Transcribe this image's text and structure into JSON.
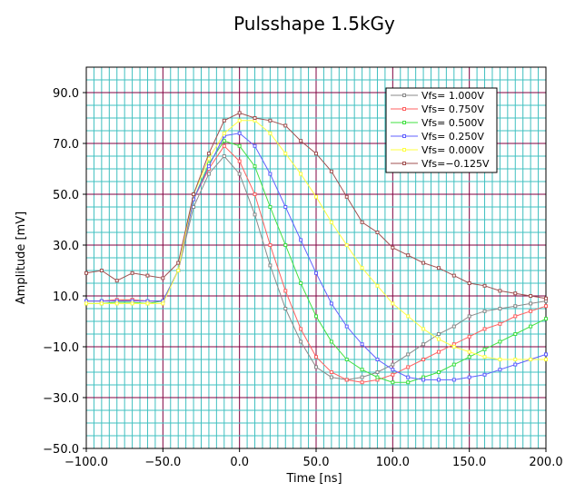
{
  "chart_data": {
    "type": "line",
    "title": "Pulsshape 1.5kGy",
    "xlabel": "Time [ns]",
    "ylabel": "Amplitude [mV]",
    "xlim": [
      -100,
      200
    ],
    "ylim": [
      -50,
      100
    ],
    "x_ticks": [
      "−100.0",
      "−50.0",
      "0.0",
      "50.0",
      "100.0",
      "150.0",
      "200.0"
    ],
    "y_ticks": [
      "−50.0",
      "−30.0",
      "−10.0",
      "10.0",
      "30.0",
      "50.0",
      "70.0",
      "90.0"
    ],
    "grid": true,
    "legend_position": "top-right",
    "x": [
      -100,
      -90,
      -80,
      -70,
      -60,
      -50,
      -40,
      -30,
      -20,
      -10,
      0,
      10,
      20,
      30,
      40,
      50,
      60,
      70,
      80,
      90,
      100,
      110,
      120,
      130,
      140,
      150,
      160,
      170,
      180,
      190,
      200
    ],
    "series": [
      {
        "name": "Vfs= 1.000V",
        "color": "#8a8a8a",
        "values": [
          8,
          8,
          8,
          8.5,
          8,
          8,
          20,
          45,
          58,
          65,
          58,
          42,
          22,
          5,
          -8,
          -18,
          -22,
          -23,
          -22,
          -20,
          -17,
          -13,
          -9,
          -5,
          -2,
          2,
          4,
          5,
          6,
          7,
          8
        ]
      },
      {
        "name": "Vfs= 0.750V",
        "color": "#ff6060",
        "values": [
          8,
          8,
          8.5,
          8.5,
          8,
          8,
          20,
          48,
          60,
          69,
          63,
          50,
          30,
          12,
          -3,
          -14,
          -20,
          -23,
          -24,
          -23,
          -21,
          -18,
          -15,
          -12,
          -9,
          -6,
          -3,
          -1,
          2,
          4,
          6
        ]
      },
      {
        "name": "Vfs= 0.500V",
        "color": "#40e040",
        "values": [
          7,
          7,
          7.5,
          7.5,
          7,
          8,
          20,
          48,
          62,
          71,
          69,
          61,
          45,
          30,
          15,
          2,
          -8,
          -15,
          -19,
          -22,
          -24,
          -24,
          -22,
          -20,
          -17,
          -14,
          -11,
          -8,
          -5,
          -2,
          1
        ]
      },
      {
        "name": "Vfs= 0.250V",
        "color": "#6060ff",
        "values": [
          8,
          8,
          8,
          8,
          8,
          8,
          20,
          48,
          61,
          73,
          74,
          69,
          58,
          45,
          32,
          19,
          7,
          -2,
          -9,
          -15,
          -19,
          -22,
          -23,
          -23,
          -23,
          -22,
          -21,
          -19,
          -17,
          -15,
          -13
        ]
      },
      {
        "name": "Vfs= 0.000V",
        "color": "#ffff40",
        "values": [
          7,
          7,
          7,
          7,
          7,
          7,
          20,
          50,
          64,
          74,
          79,
          79,
          74,
          66,
          58,
          49,
          39,
          30,
          21,
          14,
          7,
          2,
          -3,
          -7,
          -10,
          -12,
          -14,
          -15,
          -15,
          -15,
          -15
        ]
      },
      {
        "name": "Vfs=−0.125V",
        "color": "#a05050",
        "values": [
          19,
          20,
          16,
          19,
          18,
          17,
          23,
          50,
          66,
          79,
          82,
          80,
          79,
          77,
          71,
          66,
          59,
          49,
          39,
          35,
          29,
          26,
          23,
          21,
          18,
          15,
          14,
          12,
          11,
          10,
          9
        ]
      }
    ]
  }
}
